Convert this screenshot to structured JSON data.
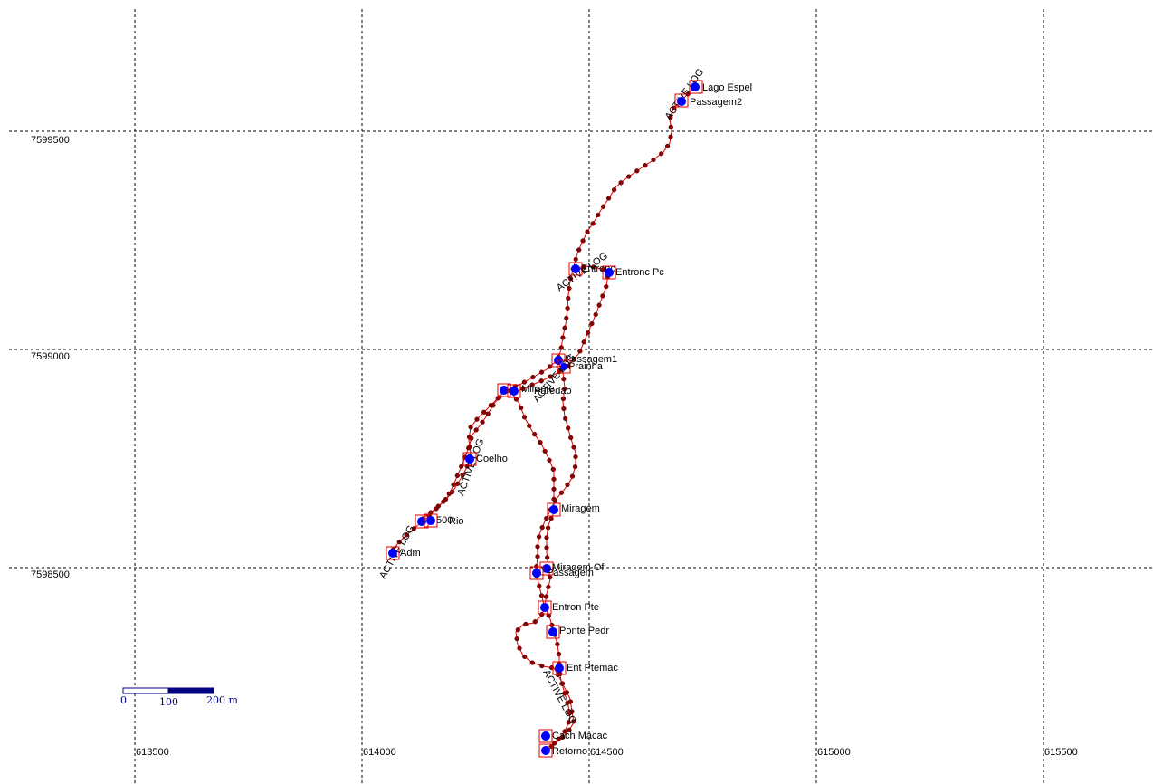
{
  "map": {
    "x_axis_labels": [
      "613500",
      "614000",
      "614500",
      "615000",
      "615500"
    ],
    "y_axis_labels": [
      "7599500",
      "7599000",
      "7598500"
    ],
    "scale_bar": {
      "labels": [
        "0",
        "100",
        "200 m"
      ]
    },
    "track_label_text": "ACTIVE LOG",
    "waypoints": [
      {
        "id": "lago-espel",
        "label": "Lago Espel"
      },
      {
        "id": "passagem2",
        "label": "Passagem2"
      },
      {
        "id": "entronc-a",
        "label": "Entronc"
      },
      {
        "id": "entronc-pc",
        "label": "Entronc Pc"
      },
      {
        "id": "passagem1",
        "label": "Passagem1"
      },
      {
        "id": "prainha",
        "label": "Prainha"
      },
      {
        "id": "mirante-a",
        "label": "Mirante"
      },
      {
        "id": "mirante-b",
        "label": "Paredao"
      },
      {
        "id": "coelho",
        "label": "Coelho"
      },
      {
        "id": "cluster-500",
        "label": "500"
      },
      {
        "id": "cluster-rio",
        "label": "Rio"
      },
      {
        "id": "adm",
        "label": "Adm"
      },
      {
        "id": "miragem",
        "label": "Miragem"
      },
      {
        "id": "miragem-of",
        "label": "Miragem Of"
      },
      {
        "id": "passagem",
        "label": "Passagem"
      },
      {
        "id": "entron-pte",
        "label": "Entron Pte"
      },
      {
        "id": "ponte-pedr",
        "label": "Ponte Pedr"
      },
      {
        "id": "ent-ptemac",
        "label": "Ent Ptemac"
      },
      {
        "id": "cach-macac",
        "label": "Cach Macac"
      },
      {
        "id": "retorno",
        "label": "Retorno"
      }
    ],
    "colors": {
      "track": "#e00000",
      "track_point": "#8b0000",
      "waypoint": "#0000ff",
      "grid": "#000000",
      "scale": "#000080"
    }
  }
}
